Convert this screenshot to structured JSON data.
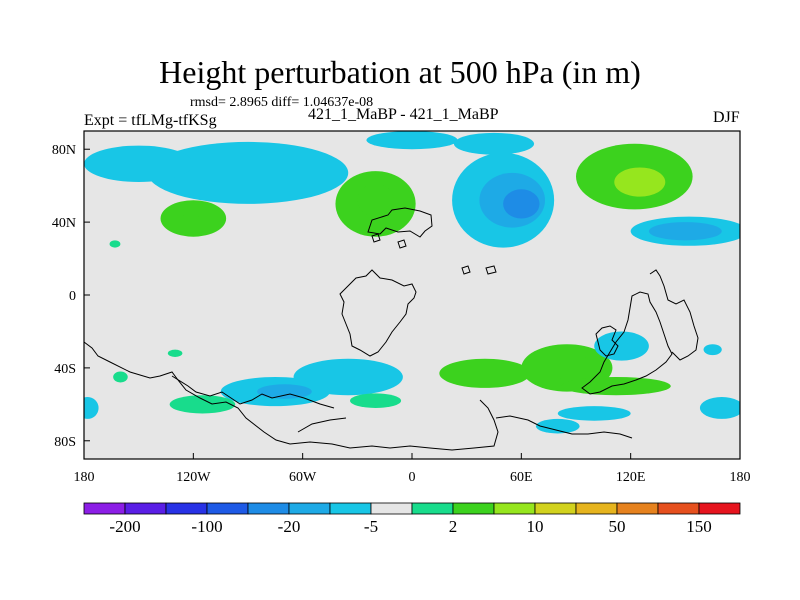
{
  "chart_data": {
    "type": "heatmap",
    "title": "Height perturbation at 500 hPa (in m)",
    "stats_text": "rmsd= 2.8965 diff= 1.04637e-08",
    "left_label": "Expt = tfLMg-tfKSg",
    "center_label": "421_1_MaBP - 421_1_MaBP",
    "right_label": "DJF",
    "xlim": [
      -180,
      180
    ],
    "ylim": [
      -90,
      90
    ],
    "x_ticks": [
      {
        "value": -180,
        "label": "180"
      },
      {
        "value": -120,
        "label": "120W"
      },
      {
        "value": -60,
        "label": "60W"
      },
      {
        "value": 0,
        "label": "0"
      },
      {
        "value": 60,
        "label": "60E"
      },
      {
        "value": 120,
        "label": "120E"
      },
      {
        "value": 180,
        "label": "180"
      }
    ],
    "y_ticks": [
      {
        "value": 80,
        "label": "80N"
      },
      {
        "value": 40,
        "label": "40N"
      },
      {
        "value": 0,
        "label": "0"
      },
      {
        "value": -40,
        "label": "40S"
      },
      {
        "value": -80,
        "label": "80S"
      }
    ],
    "colorbar": {
      "colors": [
        "#8c1ee6",
        "#5a1ee6",
        "#2832e6",
        "#1e5ae6",
        "#1e8ce6",
        "#1eaae6",
        "#18c6e6",
        "#e6e6e6",
        "#18dc8c",
        "#3cd21e",
        "#96e61e",
        "#d2d21e",
        "#e6b41e",
        "#e6821e",
        "#e6501e",
        "#e6141e"
      ],
      "tick_labels": [
        "-200",
        "-100",
        "-20",
        "-5",
        "2",
        "10",
        "50",
        "150"
      ]
    },
    "anomalies": [
      {
        "lon": -85,
        "lat": 72,
        "rx": 30,
        "ry": 10,
        "value": -5
      },
      {
        "lon": -90,
        "lat": 67,
        "rx": 55,
        "ry": 17,
        "value": -3
      },
      {
        "lon": -150,
        "lat": 72,
        "rx": 30,
        "ry": 10,
        "value": -3
      },
      {
        "lon": -120,
        "lat": 42,
        "rx": 18,
        "ry": 10,
        "value": 5
      },
      {
        "lon": -122,
        "lat": 40,
        "rx": 8,
        "ry": 4,
        "value": 8
      },
      {
        "lon": -20,
        "lat": 50,
        "rx": 22,
        "ry": 18,
        "value": 5
      },
      {
        "lon": -20,
        "lat": 52,
        "rx": 10,
        "ry": 9,
        "value": 8
      },
      {
        "lon": 0,
        "lat": 85,
        "rx": 25,
        "ry": 5,
        "value": -3
      },
      {
        "lon": 45,
        "lat": 83,
        "rx": 22,
        "ry": 6,
        "value": -3
      },
      {
        "lon": 50,
        "lat": 52,
        "rx": 28,
        "ry": 26,
        "value": -3
      },
      {
        "lon": 55,
        "lat": 52,
        "rx": 18,
        "ry": 15,
        "value": -5
      },
      {
        "lon": 60,
        "lat": 50,
        "rx": 10,
        "ry": 8,
        "value": -10
      },
      {
        "lon": 122,
        "lat": 65,
        "rx": 32,
        "ry": 18,
        "value": 5
      },
      {
        "lon": 125,
        "lat": 62,
        "rx": 14,
        "ry": 8,
        "value": 12
      },
      {
        "lon": 152,
        "lat": 35,
        "rx": 32,
        "ry": 8,
        "value": -3
      },
      {
        "lon": 150,
        "lat": 35,
        "rx": 20,
        "ry": 5,
        "value": -5
      },
      {
        "lon": -35,
        "lat": -45,
        "rx": 30,
        "ry": 10,
        "value": -3
      },
      {
        "lon": -75,
        "lat": -53,
        "rx": 30,
        "ry": 8,
        "value": -3
      },
      {
        "lon": -70,
        "lat": -53,
        "rx": 15,
        "ry": 4,
        "value": -5
      },
      {
        "lon": 40,
        "lat": -43,
        "rx": 25,
        "ry": 8,
        "value": 5
      },
      {
        "lon": 85,
        "lat": -40,
        "rx": 25,
        "ry": 13,
        "value": 5
      },
      {
        "lon": 88,
        "lat": -40,
        "rx": 12,
        "ry": 7,
        "value": 8
      },
      {
        "lon": 115,
        "lat": -28,
        "rx": 15,
        "ry": 8,
        "value": -3
      },
      {
        "lon": 112,
        "lat": -50,
        "rx": 30,
        "ry": 5,
        "value": 5
      },
      {
        "lon": 100,
        "lat": -65,
        "rx": 20,
        "ry": 4,
        "value": -3
      },
      {
        "lon": 80,
        "lat": -72,
        "rx": 12,
        "ry": 4,
        "value": -3
      },
      {
        "lon": 170,
        "lat": -62,
        "rx": 12,
        "ry": 6,
        "value": -3
      },
      {
        "lon": -178,
        "lat": -62,
        "rx": 6,
        "ry": 6,
        "value": -3
      },
      {
        "lon": -115,
        "lat": -60,
        "rx": 18,
        "ry": 5,
        "value": 3
      },
      {
        "lon": -20,
        "lat": -58,
        "rx": 14,
        "ry": 4,
        "value": 3
      },
      {
        "lon": 165,
        "lat": -30,
        "rx": 5,
        "ry": 3,
        "value": -3
      },
      {
        "lon": -160,
        "lat": -45,
        "rx": 4,
        "ry": 3,
        "value": 3
      },
      {
        "lon": -130,
        "lat": -32,
        "rx": 4,
        "ry": 2,
        "value": 3
      },
      {
        "lon": -163,
        "lat": 28,
        "rx": 3,
        "ry": 2,
        "value": 3
      }
    ]
  }
}
